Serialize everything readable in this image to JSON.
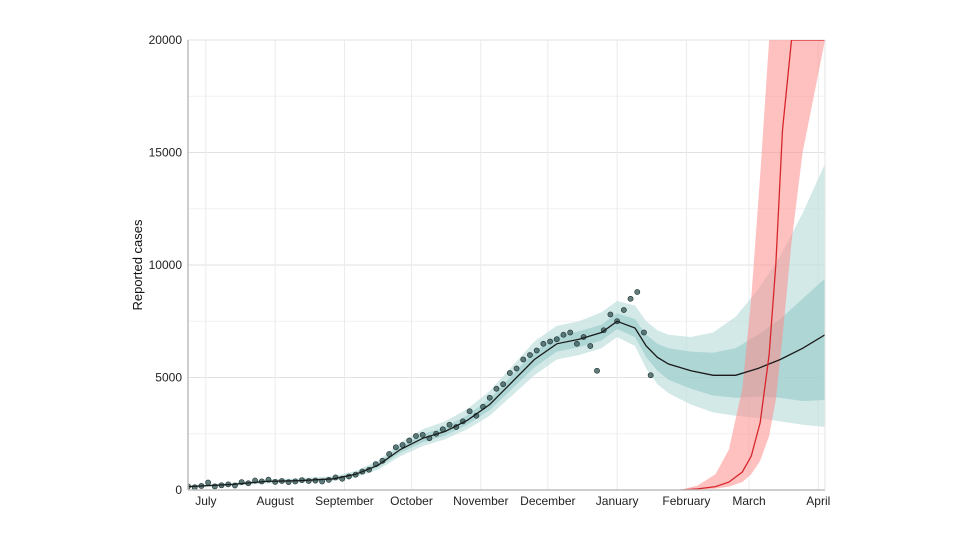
{
  "chart_data": {
    "type": "line",
    "title": "",
    "xlabel": "",
    "ylabel": "Reported cases",
    "ylim": [
      0,
      20000
    ],
    "xlim": [
      0,
      285
    ],
    "grid": true,
    "y_ticks": [
      0,
      5000,
      10000,
      15000,
      20000
    ],
    "y_tick_labels": [
      "0",
      "5000",
      "10000",
      "15000",
      "20000"
    ],
    "x_ticks": [
      {
        "label": "July",
        "day": 8
      },
      {
        "label": "August",
        "day": 39
      },
      {
        "label": "September",
        "day": 70
      },
      {
        "label": "October",
        "day": 100
      },
      {
        "label": "November",
        "day": 131
      },
      {
        "label": "December",
        "day": 161
      },
      {
        "label": "January",
        "day": 192
      },
      {
        "label": "February",
        "day": 223
      },
      {
        "label": "March",
        "day": 251
      },
      {
        "label": "April",
        "day": 282
      }
    ],
    "colors": {
      "fit_line": "#1a1a1a",
      "points": "#3d5c5c",
      "band_inner": "#8fc7c4",
      "band_outer": "#bfe0de",
      "variant_line": "#d7262a",
      "variant_band": "#ff8c8c"
    },
    "series": [
      {
        "key": "fit",
        "x": [
          0,
          20,
          35,
          50,
          65,
          75,
          85,
          95,
          105,
          115,
          125,
          135,
          145,
          155,
          165,
          175,
          185,
          192,
          200,
          205,
          210,
          215,
          225,
          235,
          245,
          255,
          265,
          275,
          285
        ],
        "y": [
          150,
          250,
          380,
          420,
          500,
          700,
          1100,
          1800,
          2300,
          2600,
          3100,
          3800,
          4800,
          5800,
          6500,
          6700,
          7000,
          7500,
          7200,
          6400,
          5900,
          5600,
          5300,
          5100,
          5100,
          5400,
          5800,
          6300,
          6900
        ],
        "inner_lower": [
          120,
          210,
          330,
          370,
          450,
          630,
          1000,
          1650,
          2120,
          2420,
          2900,
          3550,
          4500,
          5450,
          6150,
          6350,
          6650,
          7150,
          6800,
          5900,
          5300,
          4900,
          4500,
          4200,
          4100,
          4150,
          4100,
          3950,
          4000
        ],
        "inner_upper": [
          180,
          290,
          430,
          470,
          560,
          770,
          1200,
          1950,
          2480,
          2800,
          3320,
          4060,
          5100,
          6150,
          6850,
          7050,
          7350,
          7850,
          7600,
          6900,
          6500,
          6300,
          6150,
          6100,
          6300,
          6900,
          7600,
          8500,
          9400
        ],
        "outer_lower": [
          100,
          180,
          290,
          330,
          400,
          560,
          900,
          1500,
          1950,
          2250,
          2700,
          3300,
          4200,
          5100,
          5800,
          6000,
          6300,
          6800,
          6400,
          5400,
          4700,
          4300,
          3800,
          3450,
          3300,
          3200,
          3050,
          2900,
          2800
        ],
        "outer_upper": [
          210,
          330,
          480,
          520,
          620,
          850,
          1300,
          2100,
          2700,
          3050,
          3600,
          4400,
          5500,
          6600,
          7300,
          7500,
          7900,
          8400,
          8200,
          7500,
          7100,
          6900,
          6800,
          7000,
          7700,
          8900,
          10400,
          12300,
          14500
        ]
      },
      {
        "key": "variant",
        "x": [
          220,
          228,
          236,
          242,
          248,
          252,
          256,
          260,
          263,
          266,
          270,
          275,
          285
        ],
        "y": [
          0,
          50,
          150,
          350,
          800,
          1500,
          3000,
          6000,
          10000,
          16000,
          20000,
          20000,
          20000
        ],
        "lower": [
          0,
          20,
          60,
          150,
          350,
          700,
          1300,
          2400,
          4000,
          6800,
          11000,
          15000,
          20000
        ],
        "upper": [
          0,
          200,
          700,
          1800,
          4500,
          8500,
          14000,
          20000,
          20000,
          20000,
          20000,
          20000,
          20000
        ]
      }
    ],
    "points": {
      "x": [
        0,
        3,
        6,
        9,
        12,
        15,
        18,
        21,
        24,
        27,
        30,
        33,
        36,
        39,
        42,
        45,
        48,
        51,
        54,
        57,
        60,
        63,
        66,
        69,
        72,
        75,
        78,
        81,
        84,
        87,
        90,
        93,
        96,
        99,
        102,
        105,
        108,
        111,
        114,
        117,
        120,
        123,
        126,
        129,
        132,
        135,
        138,
        141,
        144,
        147,
        150,
        153,
        156,
        159,
        162,
        165,
        168,
        171,
        174,
        177,
        180,
        183,
        186,
        189,
        192,
        195,
        198,
        201,
        204,
        207
      ],
      "y": [
        160,
        120,
        180,
        330,
        160,
        210,
        250,
        200,
        350,
        300,
        420,
        380,
        460,
        360,
        400,
        350,
        380,
        440,
        400,
        420,
        380,
        450,
        560,
        500,
        600,
        680,
        820,
        900,
        1150,
        1300,
        1600,
        1900,
        2000,
        2200,
        2400,
        2450,
        2300,
        2500,
        2700,
        2900,
        2800,
        3050,
        3500,
        3300,
        3700,
        4100,
        4500,
        4700,
        5200,
        5400,
        5800,
        6000,
        6200,
        6500,
        6600,
        6700,
        6900,
        7000,
        6500,
        6800,
        6400,
        5300,
        7100,
        7800,
        7500,
        8000,
        8500,
        8800,
        7000,
        5100
      ]
    }
  }
}
